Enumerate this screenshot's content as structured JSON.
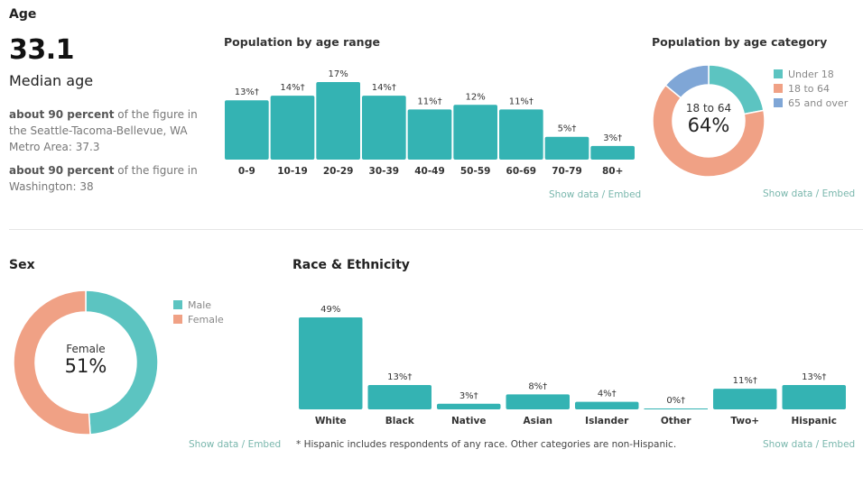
{
  "age": {
    "title": "Age",
    "median_value": "33.1",
    "median_label": "Median age",
    "comparisons": [
      {
        "bold": "about 90 percent",
        "text": " of the figure in the Seattle-Tacoma-Bellevue, WA Metro Area: 37.3"
      },
      {
        "bold": "about 90 percent",
        "text": " of the figure in Washington: 38"
      }
    ]
  },
  "links": {
    "show_data": "Show data",
    "separator": "/",
    "embed": "Embed"
  },
  "colors": {
    "teal": "#34b3b3",
    "teal_light": "#5cc4c1",
    "salmon": "#f0a185",
    "blue": "#7fa6d6"
  },
  "chart_data": [
    {
      "id": "age-range",
      "type": "bar",
      "title": "Population by age range",
      "categories": [
        "0-9",
        "10-19",
        "20-29",
        "30-39",
        "40-49",
        "50-59",
        "60-69",
        "70-79",
        "80+"
      ],
      "values": [
        13,
        14,
        17,
        14,
        11,
        12,
        11,
        5,
        3
      ],
      "labels": [
        "13%†",
        "14%†",
        "17%",
        "14%†",
        "11%†",
        "12%",
        "11%†",
        "5%†",
        "3%†"
      ],
      "xlabel": "",
      "ylabel": "",
      "ylim": [
        0,
        17
      ],
      "grid": false
    },
    {
      "id": "age-category",
      "type": "pie",
      "title": "Population by age category",
      "categories": [
        "Under 18",
        "18 to 64",
        "65 and over"
      ],
      "values": [
        22,
        64,
        14
      ],
      "center_label": "18 to 64",
      "center_value": "64%",
      "legend": "right"
    },
    {
      "id": "sex",
      "type": "pie",
      "title": "Sex",
      "categories": [
        "Male",
        "Female"
      ],
      "values": [
        49,
        51
      ],
      "center_label": "Female",
      "center_value": "51%",
      "legend": "right"
    },
    {
      "id": "race",
      "type": "bar",
      "title": "Race & Ethnicity",
      "categories": [
        "White",
        "Black",
        "Native",
        "Asian",
        "Islander",
        "Other",
        "Two+",
        "Hispanic"
      ],
      "values": [
        49,
        13,
        3,
        8,
        4,
        0,
        11,
        13
      ],
      "labels": [
        "49%",
        "13%†",
        "3%†",
        "8%†",
        "4%†",
        "0%†",
        "11%†",
        "13%†"
      ],
      "xlabel": "",
      "ylabel": "",
      "ylim": [
        0,
        49
      ],
      "grid": false,
      "footnote": "* Hispanic includes respondents of any race. Other categories are non-Hispanic."
    }
  ]
}
